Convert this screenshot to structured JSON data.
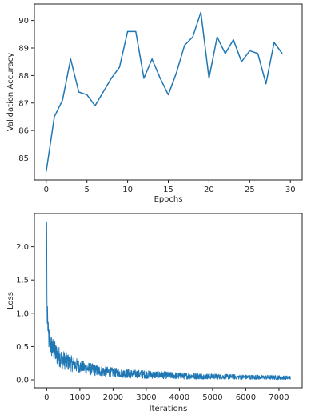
{
  "chart_data": [
    {
      "type": "line",
      "xlabel": "Epochs",
      "ylabel": "Validation Accuracy",
      "xlim": [
        -1.45,
        31.45
      ],
      "ylim": [
        84.2,
        90.6
      ],
      "xticks": [
        0,
        5,
        10,
        15,
        20,
        25,
        30
      ],
      "yticks": [
        85,
        86,
        87,
        88,
        89,
        90
      ],
      "grid": false,
      "color": "#1f77b4",
      "series": [
        {
          "x": [
            0,
            1,
            2,
            3,
            4,
            5,
            6,
            7,
            8,
            9,
            10,
            11,
            12,
            13,
            14,
            15,
            16,
            17,
            18,
            19,
            20,
            21,
            22,
            23,
            24,
            25,
            26,
            27,
            28,
            29
          ],
          "y": [
            84.5,
            86.5,
            87.1,
            88.6,
            87.4,
            87.3,
            86.9,
            87.4,
            87.9,
            88.3,
            89.6,
            89.6,
            87.9,
            88.6,
            87.9,
            87.3,
            88.1,
            89.1,
            89.4,
            90.3,
            87.9,
            89.4,
            88.8,
            89.3,
            88.5,
            88.9,
            88.8,
            87.7,
            89.2,
            88.8
          ]
        }
      ]
    },
    {
      "type": "line",
      "xlabel": "Iterations",
      "ylabel": "Loss",
      "xlim": [
        -370,
        7700
      ],
      "ylim": [
        -0.12,
        2.5
      ],
      "xticks": [
        0,
        1000,
        2000,
        3000,
        4000,
        5000,
        6000,
        7000
      ],
      "yticks": [
        0.0,
        0.5,
        1.0,
        1.5,
        2.0
      ],
      "grid": false,
      "color": "#1f77b4",
      "series": [
        {
          "x": [
            0,
            20,
            50,
            100,
            200,
            300,
            500,
            700,
            1000,
            1500,
            2000,
            2500,
            3000,
            3500,
            4000,
            5000,
            6000,
            7000,
            7350
          ],
          "y": [
            2.37,
            1.0,
            0.65,
            0.55,
            0.45,
            0.38,
            0.3,
            0.25,
            0.2,
            0.14,
            0.11,
            0.09,
            0.08,
            0.07,
            0.06,
            0.05,
            0.04,
            0.035,
            0.03
          ]
        }
      ],
      "noise_band": {
        "x": [
          0,
          100,
          500,
          1000,
          2000,
          3000,
          4000,
          5000,
          6000,
          7350
        ],
        "amplitude": [
          0.2,
          0.18,
          0.14,
          0.1,
          0.07,
          0.06,
          0.05,
          0.04,
          0.035,
          0.03
        ]
      }
    }
  ]
}
